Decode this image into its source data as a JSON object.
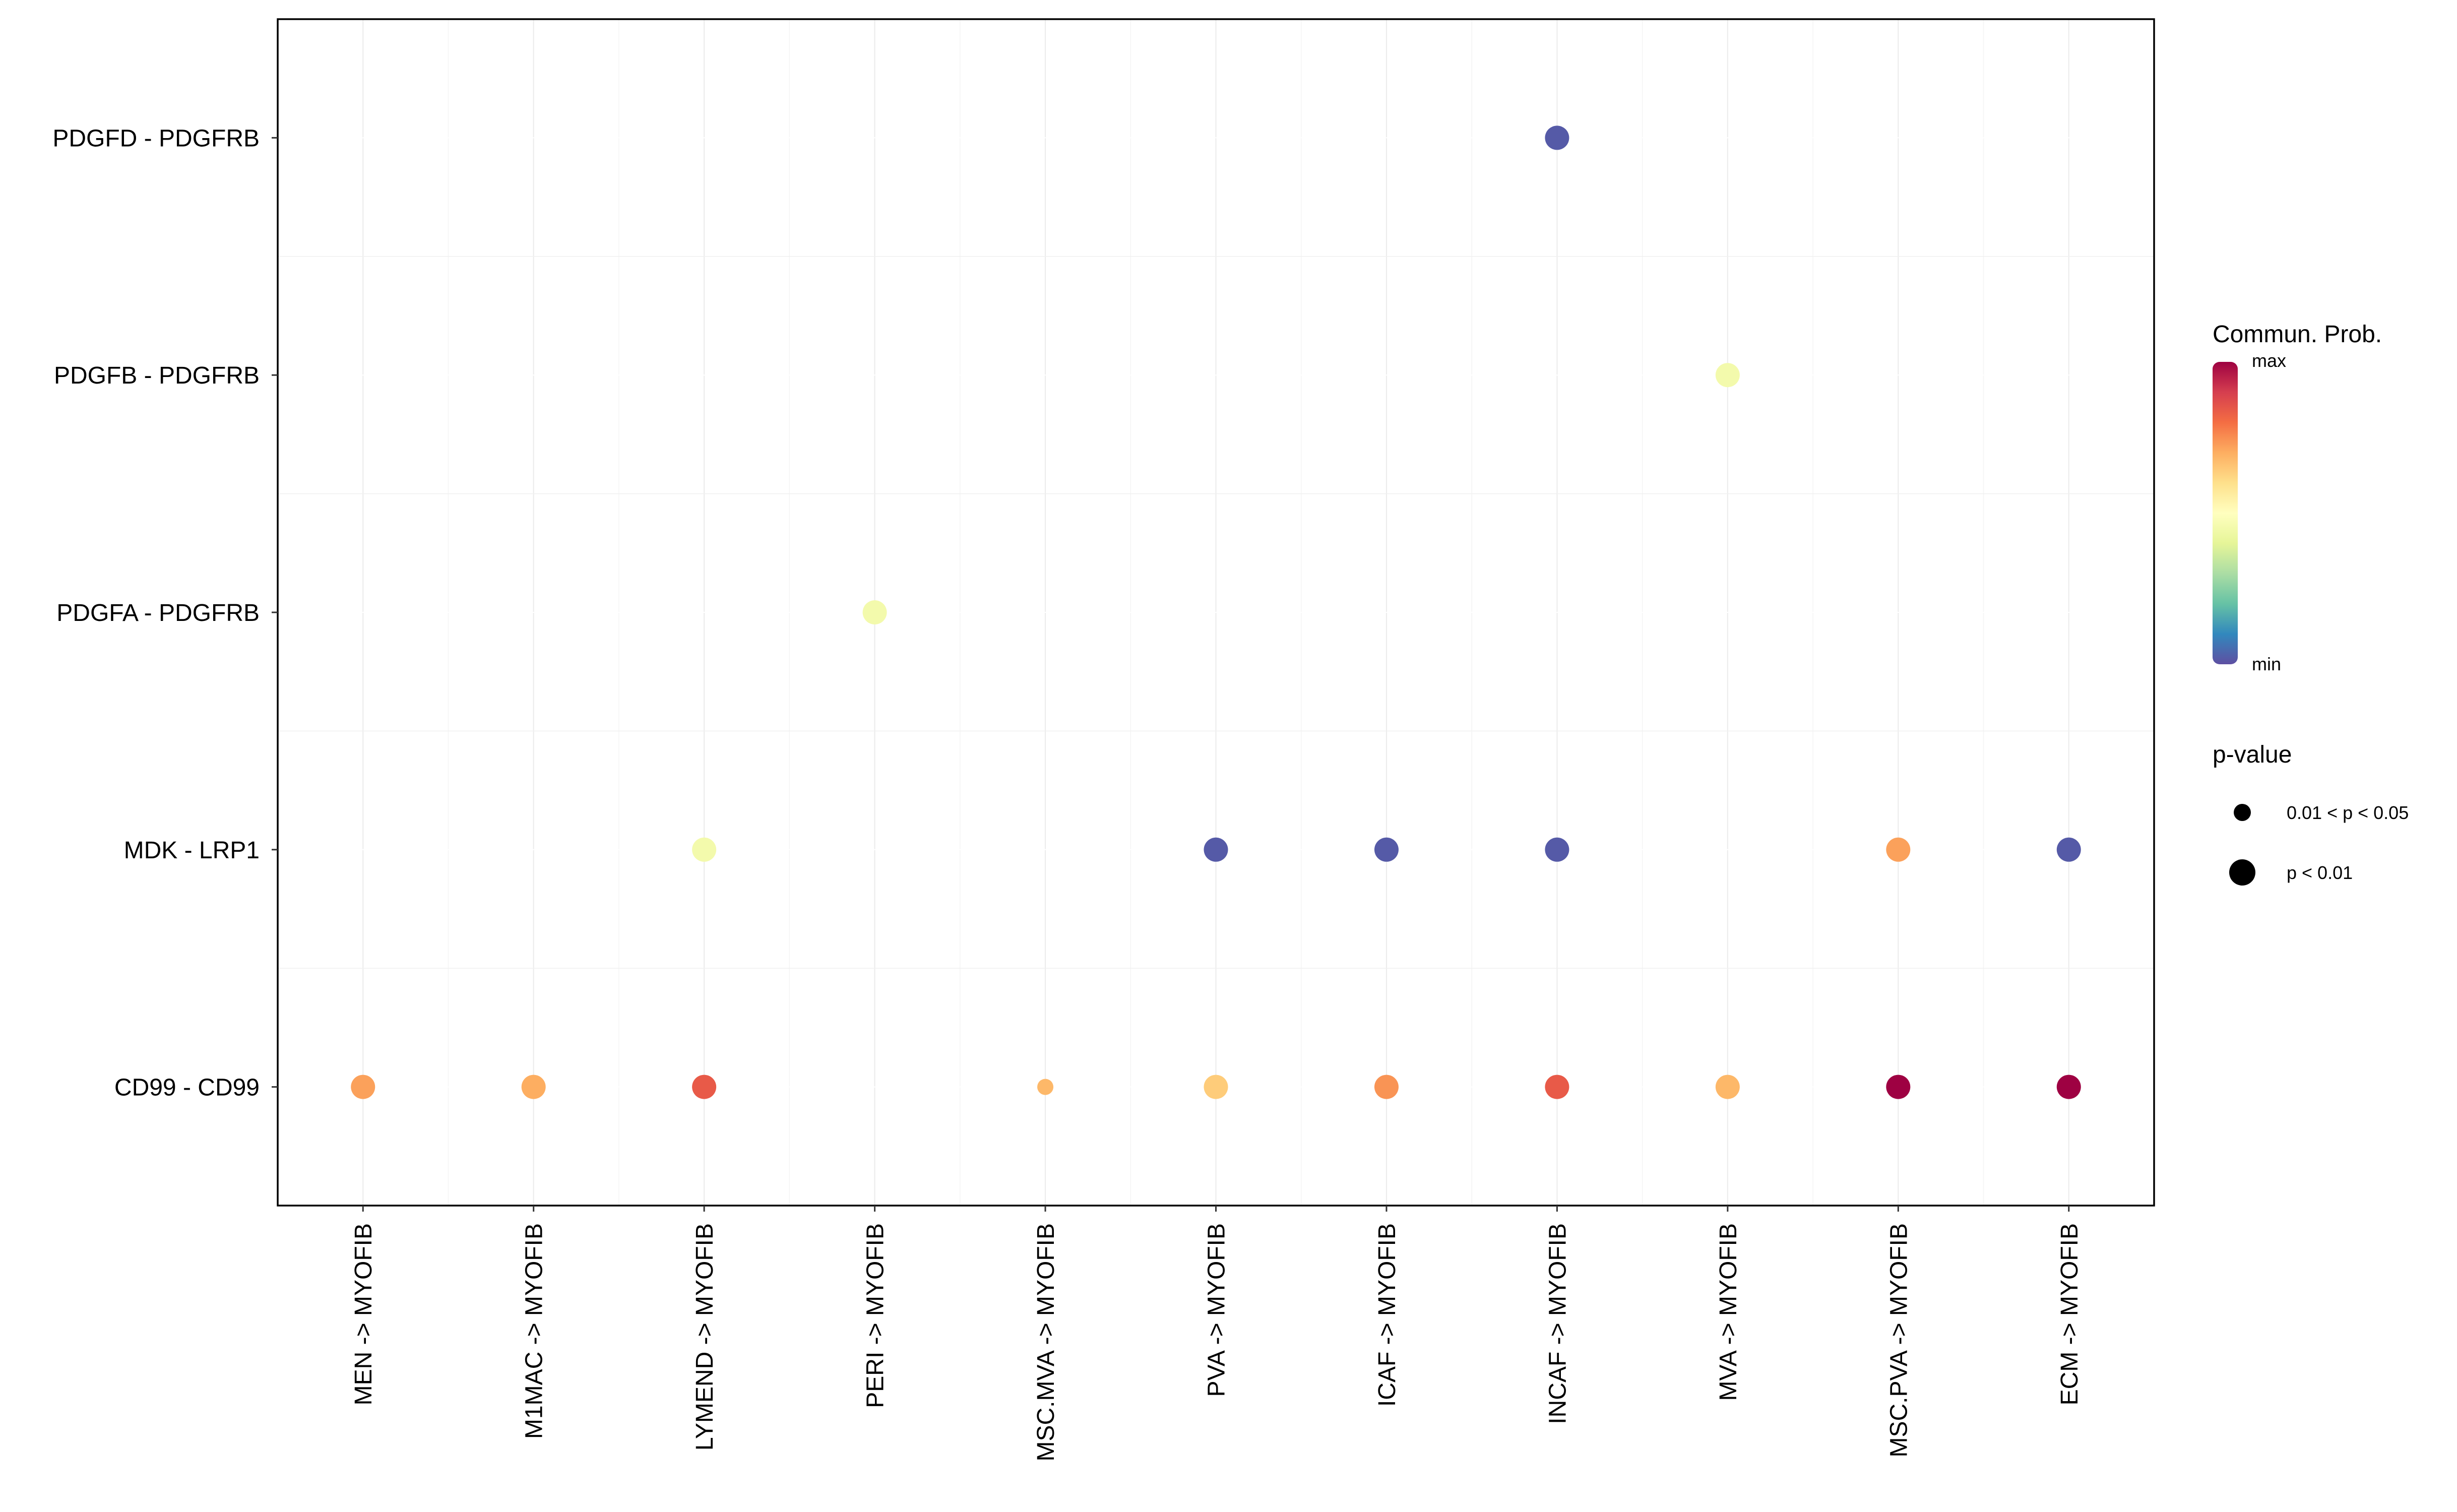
{
  "chart_data": {
    "type": "scatter",
    "subtype": "dot-plot",
    "title": "",
    "xlabel": "",
    "ylabel": "",
    "x_categories": [
      "MEN -> MYOFIB",
      "M1MAC -> MYOFIB",
      "LYMEND -> MYOFIB",
      "PERI -> MYOFIB",
      "MSC.MVA -> MYOFIB",
      "PVA -> MYOFIB",
      "ICAF -> MYOFIB",
      "INCAF -> MYOFIB",
      "MVA -> MYOFIB",
      "MSC.PVA -> MYOFIB",
      "ECM -> MYOFIB"
    ],
    "y_categories": [
      "CD99 - CD99",
      "MDK - LRP1",
      "PDGFA - PDGFRB",
      "PDGFB - PDGFRB",
      "PDGFD - PDGFRB"
    ],
    "points": [
      {
        "x": "INCAF -> MYOFIB",
        "y": "PDGFD - PDGFRB",
        "prob": 0.02,
        "pval": "p < 0.01"
      },
      {
        "x": "MVA -> MYOFIB",
        "y": "PDGFB - PDGFRB",
        "prob": 0.45,
        "pval": "p < 0.01"
      },
      {
        "x": "PERI -> MYOFIB",
        "y": "PDGFA - PDGFRB",
        "prob": 0.45,
        "pval": "p < 0.01"
      },
      {
        "x": "LYMEND -> MYOFIB",
        "y": "MDK - LRP1",
        "prob": 0.45,
        "pval": "p < 0.01"
      },
      {
        "x": "PVA -> MYOFIB",
        "y": "MDK - LRP1",
        "prob": 0.02,
        "pval": "p < 0.01"
      },
      {
        "x": "ICAF -> MYOFIB",
        "y": "MDK - LRP1",
        "prob": 0.02,
        "pval": "p < 0.01"
      },
      {
        "x": "INCAF -> MYOFIB",
        "y": "MDK - LRP1",
        "prob": 0.02,
        "pval": "p < 0.01"
      },
      {
        "x": "MSC.PVA -> MYOFIB",
        "y": "MDK - LRP1",
        "prob": 0.72,
        "pval": "p < 0.01"
      },
      {
        "x": "ECM -> MYOFIB",
        "y": "MDK - LRP1",
        "prob": 0.02,
        "pval": "p < 0.01"
      },
      {
        "x": "MEN -> MYOFIB",
        "y": "CD99 - CD99",
        "prob": 0.72,
        "pval": "p < 0.01"
      },
      {
        "x": "M1MAC -> MYOFIB",
        "y": "CD99 - CD99",
        "prob": 0.7,
        "pval": "p < 0.01"
      },
      {
        "x": "LYMEND -> MYOFIB",
        "y": "CD99 - CD99",
        "prob": 0.84,
        "pval": "p < 0.01"
      },
      {
        "x": "MSC.MVA -> MYOFIB",
        "y": "CD99 - CD99",
        "prob": 0.68,
        "pval": "0.01 < p < 0.05"
      },
      {
        "x": "PVA -> MYOFIB",
        "y": "CD99 - CD99",
        "prob": 0.64,
        "pval": "p < 0.01"
      },
      {
        "x": "ICAF -> MYOFIB",
        "y": "CD99 - CD99",
        "prob": 0.74,
        "pval": "p < 0.01"
      },
      {
        "x": "INCAF -> MYOFIB",
        "y": "CD99 - CD99",
        "prob": 0.84,
        "pval": "p < 0.01"
      },
      {
        "x": "MVA -> MYOFIB",
        "y": "CD99 - CD99",
        "prob": 0.68,
        "pval": "p < 0.01"
      },
      {
        "x": "MSC.PVA -> MYOFIB",
        "y": "CD99 - CD99",
        "prob": 1.0,
        "pval": "p < 0.01"
      },
      {
        "x": "ECM -> MYOFIB",
        "y": "CD99 - CD99",
        "prob": 1.0,
        "pval": "p < 0.01"
      }
    ],
    "color_legend": {
      "title": "Commun. Prob.",
      "max_label": "max",
      "min_label": "min",
      "palette": [
        "#5E4FA2",
        "#3288BD",
        "#66C2A5",
        "#ABDDA4",
        "#E6F598",
        "#FFFFBF",
        "#FEE08B",
        "#FDAE61",
        "#F46D43",
        "#D53E4F",
        "#9E0142"
      ]
    },
    "size_legend": {
      "title": "p-value",
      "items": [
        {
          "label": "0.01 < p < 0.05",
          "level": "small"
        },
        {
          "label": "p < 0.01",
          "level": "large"
        }
      ]
    },
    "legend_position": "right",
    "grid": true
  }
}
